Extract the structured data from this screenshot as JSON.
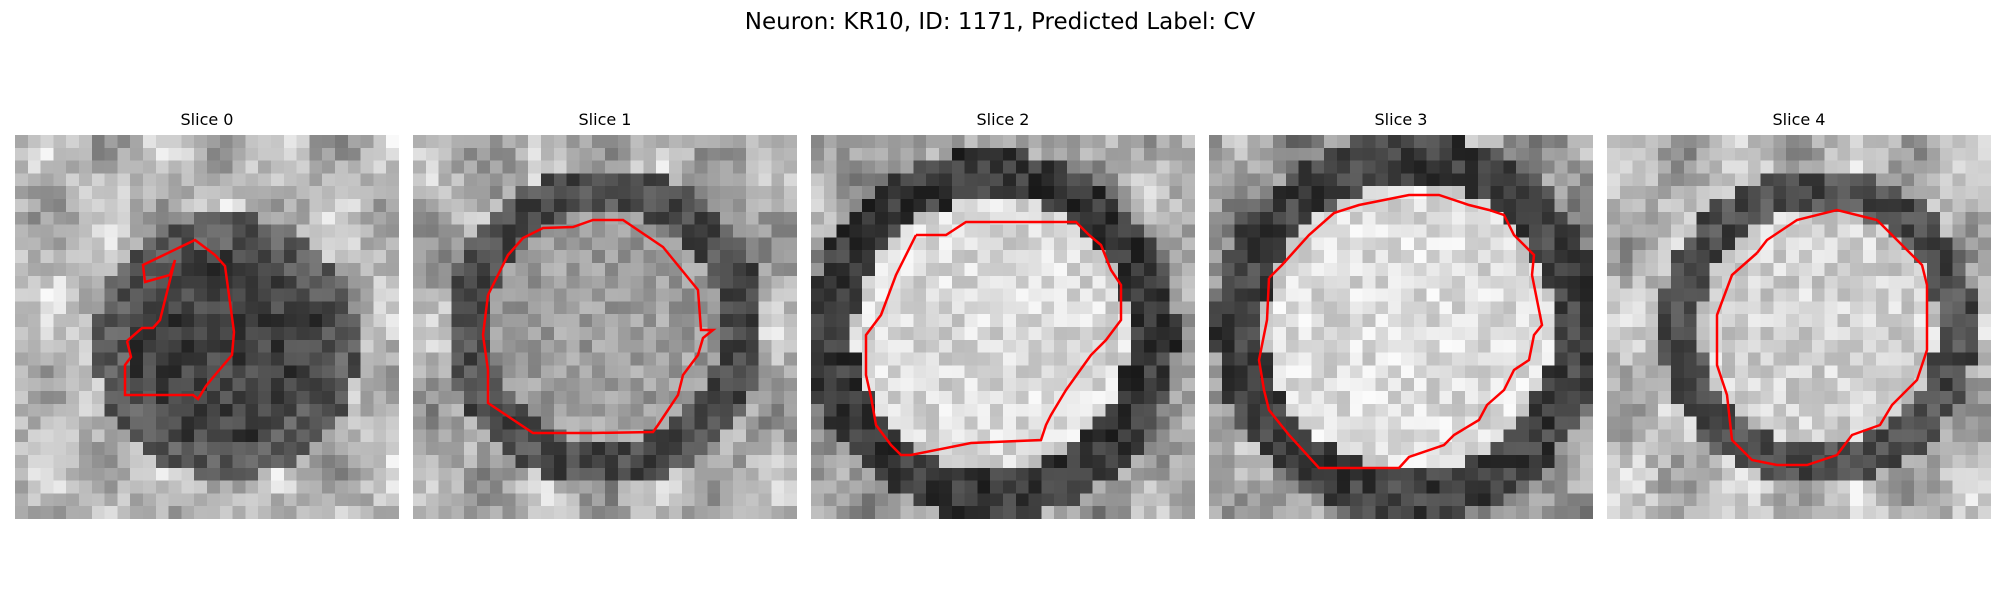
{
  "figure": {
    "title": "Neuron: KR10, ID: 1171, Predicted Label: CV"
  },
  "colors": {
    "contour": "#ff0000",
    "colormap": "gray"
  },
  "slices": [
    {
      "title": "Slice 0"
    },
    {
      "title": "Slice 1"
    },
    {
      "title": "Slice 2"
    },
    {
      "title": "Slice 3"
    },
    {
      "title": "Slice 4"
    }
  ]
}
